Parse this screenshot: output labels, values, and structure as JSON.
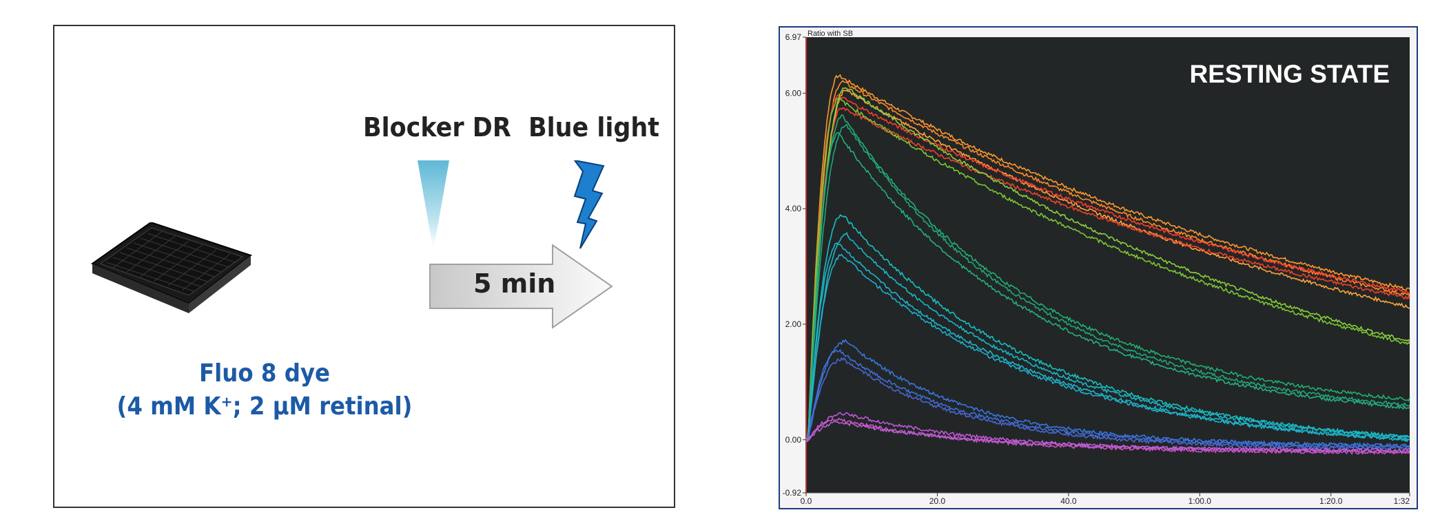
{
  "left_panel": {
    "blocker_label": "Blocker DR",
    "light_label": "Blue light",
    "arrow_label": "5 min",
    "dye_line1": "Fluo 8 dye",
    "dye_line2": "(4 mM K⁺; 2 µM retinal)",
    "colors": {
      "dye_text": "#1c5aa6",
      "pipette": "#7fc9dc",
      "lightning": "#1e7fcf"
    }
  },
  "chart_data": {
    "type": "line",
    "title": "RESTING STATE",
    "ylabel": "Ratio with SB",
    "ylim": [
      -0.92,
      6.97
    ],
    "xlim": [
      0,
      92
    ],
    "y_ticks": [
      "6.97",
      "6.00",
      "4.00",
      "2.00",
      "0.00",
      "-0.92"
    ],
    "y_tick_values": [
      6.97,
      6.0,
      4.0,
      2.0,
      0.0,
      -0.92
    ],
    "x_ticks": [
      "0.0",
      "20.0",
      "40.0",
      "1:00.0",
      "1:20.0",
      "1:32"
    ],
    "x_tick_values": [
      0,
      20,
      40,
      60,
      80,
      92
    ],
    "background": "#222627",
    "series": [
      {
        "color": "#ff9a2e",
        "peak": 6.3,
        "end": 2.6
      },
      {
        "color": "#ff8a28",
        "peak": 6.2,
        "end": 2.5
      },
      {
        "color": "#ffa63a",
        "peak": 6.05,
        "end": 2.3
      },
      {
        "color": "#ff3a2e",
        "peak": 5.95,
        "end": 2.55
      },
      {
        "color": "#f0402a",
        "peak": 5.75,
        "end": 2.45
      },
      {
        "color": "#8bd03a",
        "peak": 6.1,
        "end": 1.7
      },
      {
        "color": "#7cc832",
        "peak": 5.9,
        "end": 1.65
      },
      {
        "color": "#20b070",
        "peak": 5.6,
        "end": 0.7
      },
      {
        "color": "#1fa878",
        "peak": 5.45,
        "end": 0.6
      },
      {
        "color": "#25b080",
        "peak": 5.3,
        "end": 0.55
      },
      {
        "color": "#18c0c0",
        "peak": 3.9,
        "end": 0.05
      },
      {
        "color": "#18b8c8",
        "peak": 3.55,
        "end": 0.05
      },
      {
        "color": "#20b4cc",
        "peak": 3.4,
        "end": 0.0
      },
      {
        "color": "#1cb0c8",
        "peak": 3.2,
        "end": 0.0
      },
      {
        "color": "#3a78e0",
        "peak": 1.7,
        "end": -0.1
      },
      {
        "color": "#3f6ed8",
        "peak": 1.55,
        "end": -0.12
      },
      {
        "color": "#4a66d0",
        "peak": 1.4,
        "end": -0.15
      },
      {
        "color": "#c058d8",
        "peak": 0.45,
        "end": -0.2
      },
      {
        "color": "#d050c8",
        "peak": 0.35,
        "end": -0.22
      },
      {
        "color": "#b860d0",
        "peak": 0.3,
        "end": -0.18
      }
    ]
  }
}
